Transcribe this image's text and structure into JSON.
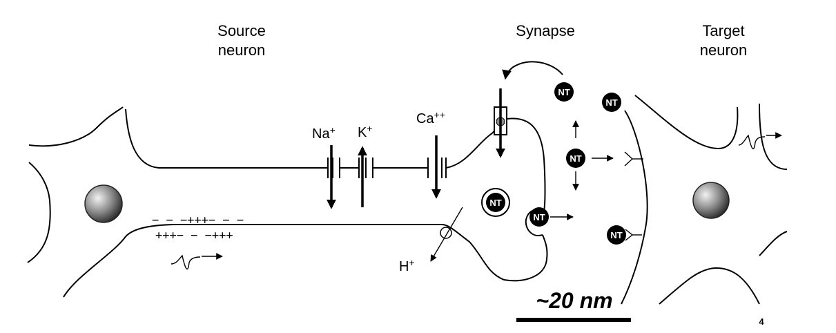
{
  "labels": {
    "source_line1": "Source",
    "source_line2": "neuron",
    "synapse": "Synapse",
    "target_line1": "Target",
    "target_line2": "neuron"
  },
  "ions": {
    "na": "Na",
    "na_sup": "+",
    "k": "K",
    "k_sup": "+",
    "ca": "Ca",
    "ca_sup": "++",
    "h": "H",
    "h_sup": "+"
  },
  "charges": {
    "top_row": "− − −+++− − −",
    "bottom_row": "+++− − −+++"
  },
  "neurotransmitter": "NT",
  "scale_bar": "~20 nm",
  "page_number": "4"
}
